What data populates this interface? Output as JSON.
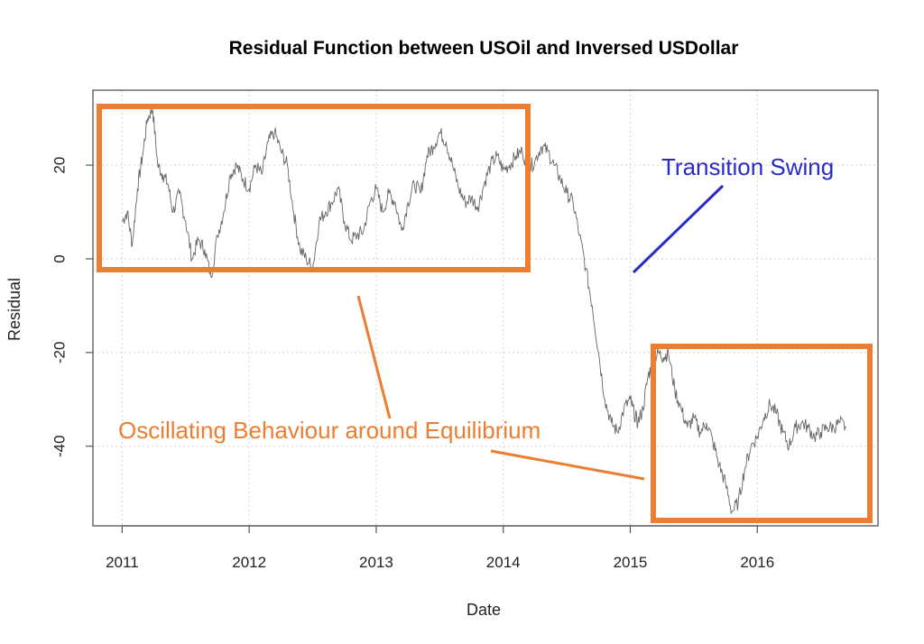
{
  "chart_data": {
    "type": "line",
    "title": "Residual Function between USOil and Inversed USDollar",
    "xlabel": "Date",
    "ylabel": "Residual",
    "x_ticks": [
      "2011",
      "2012",
      "2013",
      "2014",
      "2015",
      "2016"
    ],
    "y_ticks": [
      20,
      0,
      -20,
      -40
    ],
    "xlim": [
      2010.77,
      2016.95
    ],
    "ylim": [
      -57,
      36
    ],
    "grid": true,
    "series": [
      {
        "color": "#666666",
        "x": [
          2011.0,
          2011.04,
          2011.08,
          2011.12,
          2011.16,
          2011.2,
          2011.24,
          2011.28,
          2011.32,
          2011.36,
          2011.4,
          2011.45,
          2011.5,
          2011.55,
          2011.6,
          2011.65,
          2011.7,
          2011.75,
          2011.8,
          2011.85,
          2011.9,
          2011.95,
          2012.0,
          2012.05,
          2012.1,
          2012.15,
          2012.2,
          2012.25,
          2012.3,
          2012.35,
          2012.4,
          2012.45,
          2012.5,
          2012.55,
          2012.6,
          2012.65,
          2012.7,
          2012.75,
          2012.8,
          2012.85,
          2012.9,
          2012.95,
          2013.0,
          2013.05,
          2013.1,
          2013.15,
          2013.2,
          2013.25,
          2013.3,
          2013.35,
          2013.4,
          2013.45,
          2013.5,
          2013.55,
          2013.6,
          2013.65,
          2013.7,
          2013.75,
          2013.8,
          2013.85,
          2013.9,
          2013.95,
          2014.0,
          2014.05,
          2014.1,
          2014.15,
          2014.2,
          2014.25,
          2014.3,
          2014.35,
          2014.4,
          2014.45,
          2014.5,
          2014.55,
          2014.6,
          2014.65,
          2014.7,
          2014.75,
          2014.8,
          2014.85,
          2014.9,
          2014.95,
          2015.0,
          2015.03,
          2015.06,
          2015.1,
          2015.14,
          2015.18,
          2015.22,
          2015.26,
          2015.3,
          2015.35,
          2015.4,
          2015.45,
          2015.5,
          2015.55,
          2015.6,
          2015.65,
          2015.7,
          2015.75,
          2015.8,
          2015.85,
          2015.9,
          2015.95,
          2016.0,
          2016.05,
          2016.1,
          2016.15,
          2016.2,
          2016.25,
          2016.3,
          2016.35,
          2016.4,
          2016.45,
          2016.5,
          2016.55,
          2016.6,
          2016.65,
          2016.7
        ],
        "y": [
          8,
          10,
          3,
          15,
          22,
          30,
          32,
          20,
          18,
          16,
          10,
          14,
          8,
          0,
          4,
          2,
          -4,
          5,
          10,
          18,
          20,
          17,
          15,
          20,
          18,
          25,
          27,
          23,
          20,
          10,
          2,
          0,
          -2,
          8,
          10,
          12,
          15,
          8,
          4,
          5,
          6,
          12,
          15,
          10,
          14,
          12,
          6,
          12,
          16,
          14,
          22,
          24,
          27,
          25,
          20,
          15,
          12,
          13,
          11,
          16,
          20,
          22,
          19,
          20,
          22,
          23,
          19,
          21,
          24,
          23,
          20,
          17,
          14,
          12,
          5,
          -2,
          -10,
          -20,
          -30,
          -35,
          -37,
          -32,
          -30,
          -33,
          -35,
          -32,
          -25,
          -22,
          -20,
          -21,
          -20,
          -28,
          -32,
          -36,
          -34,
          -37,
          -35,
          -39,
          -44,
          -48,
          -54,
          -52,
          -45,
          -40,
          -38,
          -34,
          -31,
          -33,
          -37,
          -40,
          -36,
          -35,
          -36,
          -38,
          -37,
          -36,
          -36,
          -35,
          -36
        ]
      }
    ],
    "annotations": {
      "transition": "Transition Swing",
      "oscillating": "Oscillating Behaviour around Equilibrium",
      "orange_color": "#ed7d31",
      "blue_color": "#2a2ac8"
    }
  }
}
